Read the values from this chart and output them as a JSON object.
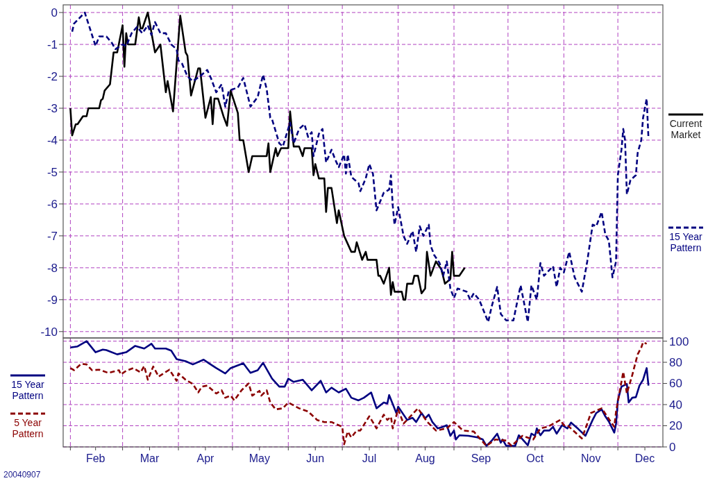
{
  "chart_data": [
    {
      "type": "line",
      "xlim": [
        "--01-28",
        "--12-26"
      ],
      "ylim": [
        -10.2,
        0.24
      ],
      "yticks": [
        -10,
        -9,
        -8,
        -7,
        -6,
        -5,
        -4,
        -3,
        -2,
        -1,
        0
      ],
      "xticks": [
        {
          "value": "--02-01",
          "label": null
        },
        {
          "value": "--03-01",
          "label": null
        },
        {
          "value": "--04-01",
          "label": null
        },
        {
          "value": "--05-01",
          "label": null
        },
        {
          "value": "--06-01",
          "label": null
        },
        {
          "value": "--07-01",
          "label": null
        },
        {
          "value": "--08-01",
          "label": null
        },
        {
          "value": "--09-01",
          "label": null
        },
        {
          "value": "--10-01",
          "label": null
        },
        {
          "value": "--11-01",
          "label": null
        },
        {
          "value": "--12-01",
          "label": null
        }
      ],
      "grid": true,
      "legend": "right",
      "tick_labels": "y",
      "series": [
        {
          "name": "Current Market",
          "color": "#000000",
          "line_style": "solid",
          "x": [
            "--02-01",
            "--02-02",
            "--02-04",
            "--02-05",
            "--02-08",
            "--02-10",
            "--02-11",
            "--02-17",
            "--02-18",
            "--02-19",
            "--02-20",
            "--02-23",
            "--02-25",
            "--02-27",
            "--03-01",
            "--03-02",
            "--03-03",
            "--03-04",
            "--03-08",
            "--03-10",
            "--03-11",
            "--03-12",
            "--03-15",
            "--03-19",
            "--03-22",
            "--03-25",
            "--03-26",
            "--03-29",
            "--04-02",
            "--04-05",
            "--04-06",
            "--04-08",
            "--04-12",
            "--04-13",
            "--04-16",
            "--04-19",
            "--04-20",
            "--04-21",
            "--04-23",
            "--04-26",
            "--04-28",
            "--04-30",
            "--05-04",
            "--05-05",
            "--05-07",
            "--05-10",
            "--05-12",
            "--05-20",
            "--05-21",
            "--05-22",
            "--05-25",
            "--05-26",
            "--05-28",
            "--06-01",
            "--06-02",
            "--06-04",
            "--06-07",
            "--06-09",
            "--06-10",
            "--06-14",
            "--06-15",
            "--06-16",
            "--06-18",
            "--06-21",
            "--06-22",
            "--06-23",
            "--06-25",
            "--06-28",
            "--06-29",
            "--07-02",
            "--07-06",
            "--07-08",
            "--07-09",
            "--07-12",
            "--07-14",
            "--07-15",
            "--07-20",
            "--07-21",
            "--07-22",
            "--07-24",
            "--07-27",
            "--07-28",
            "--07-29",
            "--07-30",
            "--08-03",
            "--08-04",
            "--08-05",
            "--08-06",
            "--08-09",
            "--08-10",
            "--08-12",
            "--08-14",
            "--08-16",
            "--08-17",
            "--08-19",
            "--08-22",
            "--08-25",
            "--08-27",
            "--08-30",
            "--08-31",
            "--09-01",
            "--09-04",
            "--09-07"
          ],
          "values": [
            -3.0,
            -3.85,
            -3.5,
            -3.5,
            -3.25,
            -3.25,
            -3.0,
            -3.0,
            -2.75,
            -2.7,
            -2.45,
            -2.25,
            -1.25,
            -1.25,
            -0.4,
            -1.7,
            -0.65,
            -1.0,
            -1.0,
            -0.15,
            -0.5,
            -0.5,
            0.0,
            -1.25,
            -1.0,
            -2.5,
            -2.15,
            -3.1,
            -0.1,
            -1.25,
            -1.35,
            -2.6,
            -1.75,
            -1.75,
            -3.3,
            -2.65,
            -3.5,
            -2.7,
            -2.7,
            -3.25,
            -3.55,
            -2.45,
            -3.15,
            -4.0,
            -4.0,
            -5.0,
            -4.5,
            -4.5,
            -4.1,
            -5.0,
            -4.25,
            -4.5,
            -4.25,
            -4.25,
            -3.1,
            -4.2,
            -4.2,
            -4.5,
            -4.25,
            -4.25,
            -5.1,
            -4.75,
            -5.2,
            -5.2,
            -6.25,
            -5.5,
            -5.5,
            -6.6,
            -6.2,
            -7.0,
            -7.5,
            -7.5,
            -7.2,
            -7.75,
            -7.5,
            -7.75,
            -7.75,
            -8.25,
            -8.25,
            -8.5,
            -8.0,
            -8.85,
            -8.45,
            -8.75,
            -8.75,
            -9.0,
            -9.0,
            -8.5,
            -8.5,
            -8.25,
            -8.25,
            -8.8,
            -8.65,
            -7.5,
            -8.25,
            -7.8,
            -8.05,
            -8.5,
            -8.35,
            -7.5,
            -8.25,
            -8.25,
            -8.0
          ]
        },
        {
          "name": "15 Year Pattern",
          "color": "#000080",
          "line_style": "dashed",
          "x": [
            "--02-02",
            "--02-03",
            "--02-09",
            "--02-11",
            "--02-15",
            "--02-17",
            "--02-21",
            "--02-24",
            "--02-26",
            "--03-01",
            "--03-03",
            "--03-06",
            "--03-09",
            "--03-12",
            "--03-15",
            "--03-17",
            "--03-19",
            "--03-22",
            "--03-25",
            "--03-28",
            "--03-31",
            "--04-01",
            "--04-03",
            "--04-06",
            "--04-09",
            "--04-13",
            "--04-17",
            "--04-19",
            "--04-22",
            "--04-25",
            "--04-27",
            "--04-29",
            "--05-04",
            "--05-07",
            "--05-11",
            "--05-15",
            "--05-18",
            "--05-20",
            "--05-22",
            "--05-23",
            "--05-27",
            "--05-29",
            "--06-02",
            "--06-04",
            "--06-07",
            "--06-10",
            "--06-12",
            "--06-14",
            "--06-15",
            "--06-18",
            "--06-20",
            "--06-22",
            "--06-25",
            "--06-27",
            "--06-29",
            "--07-02",
            "--07-03",
            "--07-04",
            "--07-06",
            "--07-10",
            "--07-11",
            "--07-14",
            "--07-16",
            "--07-18",
            "--07-20",
            "--07-24",
            "--07-27",
            "--07-28",
            "--07-29",
            "--07-30",
            "--08-01",
            "--08-04",
            "--08-06",
            "--08-09",
            "--08-11",
            "--08-13",
            "--08-15",
            "--08-18",
            "--08-19",
            "--08-21",
            "--08-24",
            "--08-26",
            "--08-28",
            "--08-30",
            "--09-01",
            "--09-03",
            "--09-08",
            "--09-10",
            "--09-12",
            "--09-15",
            "--09-20",
            "--09-22",
            "--09-25",
            "--09-27",
            "--09-30",
            "--10-04",
            "--10-08",
            "--10-12",
            "--10-14",
            "--10-17",
            "--10-19",
            "--10-21",
            "--10-26",
            "--10-28",
            "--10-30",
            "--11-01",
            "--11-04",
            "--11-07",
            "--11-11",
            "--11-14",
            "--11-17",
            "--11-19",
            "--11-22",
            "--11-24",
            "--11-26",
            "--11-28",
            "--11-30",
            "--12-01",
            "--12-03",
            "--12-04",
            "--12-05",
            "--12-06",
            "--12-08",
            "--12-11",
            "--12-12",
            "--12-14",
            "--12-15",
            "--12-17",
            "--12-18"
          ],
          "values": [
            -0.6,
            -0.35,
            0.0,
            -0.35,
            -1.05,
            -0.75,
            -0.75,
            -0.95,
            -1.15,
            -1.0,
            -1.05,
            -0.65,
            -0.45,
            -0.65,
            -0.4,
            -0.7,
            -0.3,
            -0.65,
            -0.65,
            -1.0,
            -1.15,
            -1.5,
            -1.6,
            -2.0,
            -2.15,
            -2.0,
            -1.8,
            -2.05,
            -2.5,
            -2.25,
            -2.95,
            -2.45,
            -2.35,
            -2.05,
            -2.95,
            -2.65,
            -1.95,
            -2.4,
            -3.3,
            -3.35,
            -4.1,
            -4.2,
            -3.45,
            -4.1,
            -3.65,
            -3.5,
            -3.9,
            -3.75,
            -4.5,
            -3.8,
            -3.65,
            -4.7,
            -4.3,
            -4.6,
            -4.85,
            -4.45,
            -5.05,
            -4.45,
            -5.15,
            -5.35,
            -5.6,
            -5.2,
            -4.75,
            -5.05,
            -6.2,
            -5.65,
            -5.55,
            -5.1,
            -6.05,
            -6.65,
            -6.1,
            -7.0,
            -7.25,
            -6.85,
            -7.5,
            -6.7,
            -7.0,
            -6.65,
            -7.3,
            -7.6,
            -7.85,
            -8.25,
            -7.8,
            -8.65,
            -8.95,
            -8.65,
            -8.75,
            -9.0,
            -8.8,
            -9.0,
            -9.7,
            -9.2,
            -8.6,
            -9.45,
            -9.65,
            -9.65,
            -8.55,
            -9.7,
            -8.55,
            -9.0,
            -7.85,
            -8.25,
            -7.95,
            -8.6,
            -8.0,
            -8.15,
            -7.5,
            -8.3,
            -8.75,
            -7.8,
            -6.65,
            -6.7,
            -6.25,
            -6.95,
            -7.15,
            -8.3,
            -7.8,
            -5.1,
            -4.3,
            -3.65,
            -4.0,
            -5.7,
            -5.25,
            -5.1,
            -4.4,
            -4.0,
            -3.3,
            -2.7,
            -3.95
          ]
        }
      ]
    },
    {
      "type": "line",
      "xlim": [
        "--01-28",
        "--12-26"
      ],
      "y2lim": [
        0,
        103
      ],
      "y2ticks": [
        0,
        20,
        40,
        60,
        80,
        100
      ],
      "xticks": [
        {
          "value": "--02-01",
          "label": null
        },
        {
          "value": "--02-15",
          "label": "Feb"
        },
        {
          "value": "--03-01",
          "label": null
        },
        {
          "value": "--03-16",
          "label": "Mar"
        },
        {
          "value": "--04-01",
          "label": null
        },
        {
          "value": "--04-16",
          "label": "Apr"
        },
        {
          "value": "--05-01",
          "label": null
        },
        {
          "value": "--05-16",
          "label": "May"
        },
        {
          "value": "--06-01",
          "label": null
        },
        {
          "value": "--06-16",
          "label": "Jun"
        },
        {
          "value": "--07-01",
          "label": null
        },
        {
          "value": "--07-16",
          "label": "Jul"
        },
        {
          "value": "--08-01",
          "label": null
        },
        {
          "value": "--08-16",
          "label": "Aug"
        },
        {
          "value": "--09-01",
          "label": null
        },
        {
          "value": "--09-16",
          "label": "Sep"
        },
        {
          "value": "--10-01",
          "label": null
        },
        {
          "value": "--10-16",
          "label": "Oct"
        },
        {
          "value": "--11-01",
          "label": null
        },
        {
          "value": "--11-16",
          "label": "Nov"
        },
        {
          "value": "--12-01",
          "label": null
        },
        {
          "value": "--12-16",
          "label": "Dec"
        }
      ],
      "grid": true,
      "legend": "left",
      "annotations": [
        "20040907"
      ],
      "series": [
        {
          "name": "15 Year Pattern",
          "color": "#000080",
          "line_style": "solid",
          "axis": "y2",
          "x": [
            "--02-01",
            "--02-05",
            "--02-10",
            "--02-15",
            "--02-19",
            "--02-21",
            "--02-27",
            "--03-03",
            "--03-08",
            "--03-13",
            "--03-17",
            "--03-19",
            "--03-25",
            "--03-28",
            "--03-31",
            "--04-05",
            "--04-09",
            "--04-15",
            "--04-18",
            "--04-22",
            "--04-27",
            "--04-30",
            "--05-07",
            "--05-11",
            "--05-15",
            "--05-18",
            "--05-23",
            "--05-27",
            "--05-30",
            "--06-01",
            "--06-04",
            "--06-09",
            "--06-14",
            "--06-19",
            "--06-22",
            "--06-25",
            "--06-29",
            "--07-03",
            "--07-06",
            "--07-10",
            "--07-13",
            "--07-17",
            "--07-20",
            "--07-24",
            "--07-26",
            "--07-27",
            "--07-31",
            "--08-01",
            "--08-06",
            "--08-09",
            "--08-11",
            "--08-14",
            "--08-16",
            "--08-18",
            "--08-20",
            "--08-23",
            "--08-26",
            "--08-28",
            "--08-30",
            "--09-01",
            "--09-02",
            "--09-04",
            "--09-09",
            "--09-14",
            "--09-17",
            "--09-19",
            "--09-22",
            "--09-25",
            "--09-27",
            "--09-28",
            "--09-30",
            "--10-05",
            "--10-07",
            "--10-12",
            "--10-14",
            "--10-16",
            "--10-17",
            "--10-19",
            "--10-21",
            "--10-24",
            "--10-26",
            "--10-28",
            "--10-31",
            "--11-03",
            "--11-05",
            "--11-09",
            "--11-13",
            "--11-17",
            "--11-19",
            "--11-22",
            "--11-24",
            "--11-26",
            "--11-29",
            "--11-30",
            "--12-01",
            "--12-03",
            "--12-06",
            "--12-07",
            "--12-09",
            "--12-11",
            "--12-13",
            "--12-15",
            "--12-17",
            "--12-18"
          ],
          "values": [
            94,
            95,
            100,
            89.5,
            92,
            91.5,
            87.5,
            89.5,
            95.5,
            93,
            97.5,
            93,
            93,
            91,
            83,
            81,
            78,
            82.5,
            79,
            74.5,
            69.5,
            74.5,
            79,
            70,
            72.5,
            79.5,
            64.5,
            57,
            57,
            64.5,
            61.5,
            63.5,
            53.5,
            62.5,
            51.5,
            56,
            51.5,
            55,
            46.5,
            44,
            46.5,
            51.5,
            36.5,
            42,
            41,
            49,
            32,
            38,
            25.5,
            27.5,
            23.5,
            32,
            27,
            30.5,
            23.5,
            17.5,
            19,
            20.5,
            10.5,
            15.5,
            7,
            11,
            10.5,
            9,
            7,
            1,
            6,
            12.5,
            4,
            7,
            1,
            1,
            11,
            1.5,
            12.5,
            10.5,
            17.5,
            11,
            15.5,
            15.5,
            19,
            12.5,
            20.5,
            17.5,
            23,
            17,
            10.5,
            25.5,
            32,
            35.5,
            29,
            24,
            13.5,
            22,
            44,
            57,
            59.5,
            42,
            46.5,
            47,
            58,
            63.5,
            74.5,
            58
          ]
        },
        {
          "name": "5 Year Pattern",
          "color": "#8b0000",
          "line_style": "dashed",
          "axis": "y2",
          "x": [
            "--02-01",
            "--02-03",
            "--02-07",
            "--02-10",
            "--02-13",
            "--02-17",
            "--02-22",
            "--02-28",
            "--02-29",
            "--03-03",
            "--03-07",
            "--03-11",
            "--03-13",
            "--03-15",
            "--03-18",
            "--03-21",
            "--03-27",
            "--03-31",
            "--04-01",
            "--04-05",
            "--04-09",
            "--04-12",
            "--04-14",
            "--04-17",
            "--04-22",
            "--04-25",
            "--04-27",
            "--04-30",
            "--05-02",
            "--05-06",
            "--05-10",
            "--05-12",
            "--05-16",
            "--05-17",
            "--05-20",
            "--05-22",
            "--05-25",
            "--05-29",
            "--06-01",
            "--06-07",
            "--06-12",
            "--06-17",
            "--06-21",
            "--06-25",
            "--07-01",
            "--07-02",
            "--07-04",
            "--07-06",
            "--07-09",
            "--07-11",
            "--07-16",
            "--07-20",
            "--07-24",
            "--07-26",
            "--07-28",
            "--07-29",
            "--08-01",
            "--08-04",
            "--08-12",
            "--08-17",
            "--08-22",
            "--08-28",
            "--09-01",
            "--09-06",
            "--09-12",
            "--09-19",
            "--09-24",
            "--09-30",
            "--10-03",
            "--10-09",
            "--10-15",
            "--10-19",
            "--10-23",
            "--10-30",
            "--11-01",
            "--11-03",
            "--11-11",
            "--11-14",
            "--11-16",
            "--11-22",
            "--11-29",
            "--11-30",
            "--12-04",
            "--12-06",
            "--12-09",
            "--12-12",
            "--12-14",
            "--12-15",
            "--12-17"
          ],
          "values": [
            74.5,
            72.5,
            78.5,
            78,
            72.5,
            73,
            70,
            72.5,
            68.5,
            72,
            74.5,
            70.5,
            76.5,
            63.5,
            76,
            66.5,
            73,
            62.5,
            69.5,
            63.5,
            59.5,
            51.5,
            57,
            58,
            50.5,
            53.5,
            46.5,
            48.5,
            44,
            53.5,
            60,
            48.5,
            53,
            48.5,
            53.5,
            42,
            35.5,
            36.5,
            42,
            36.5,
            33.5,
            25.5,
            23.5,
            23.5,
            19,
            2.5,
            14.5,
            9,
            15.5,
            15.5,
            29,
            17.5,
            30.5,
            25.5,
            28.5,
            17.5,
            35.5,
            22,
            36.5,
            24,
            15.5,
            17.5,
            23.5,
            15.5,
            14.5,
            1,
            7,
            6,
            1,
            10.5,
            7,
            17.5,
            19,
            25.5,
            20.5,
            20.5,
            8,
            22,
            32,
            36.5,
            19,
            33.5,
            71,
            50.5,
            68,
            87.5,
            94,
            99,
            97.5
          ]
        }
      ]
    }
  ]
}
